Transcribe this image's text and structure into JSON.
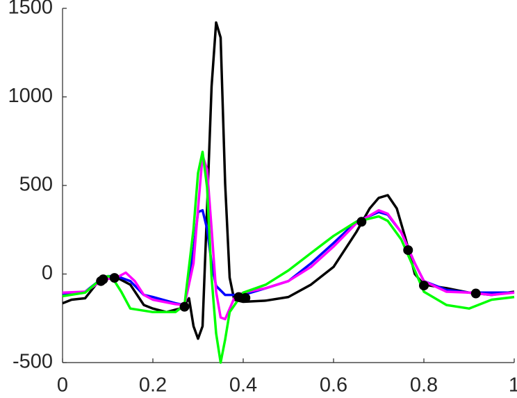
{
  "chart_data": {
    "type": "line",
    "xlim": [
      0,
      1
    ],
    "xticks": [
      0,
      0.2,
      0.4,
      0.6,
      0.8,
      1
    ],
    "ylim": [
      -500,
      1500
    ],
    "yticks": [
      -500,
      0,
      500,
      1000,
      1500
    ],
    "series": [
      {
        "color": "#000000",
        "x": [
          0,
          0.02,
          0.05,
          0.08,
          0.1,
          0.12,
          0.15,
          0.18,
          0.2,
          0.23,
          0.26,
          0.27,
          0.28,
          0.29,
          0.3,
          0.31,
          0.32,
          0.33,
          0.34,
          0.35,
          0.36,
          0.37,
          0.38,
          0.4,
          0.45,
          0.5,
          0.55,
          0.6,
          0.65,
          0.68,
          0.7,
          0.72,
          0.74,
          0.76,
          0.78,
          0.8,
          0.85,
          0.9,
          0.95,
          1
        ],
        "values": [
          -165,
          -145,
          -137,
          -40,
          -12,
          -20,
          -60,
          -175,
          -195,
          -215,
          -195,
          -175,
          -137,
          -295,
          -365,
          -295,
          370,
          1060,
          1420,
          1335,
          510,
          -20,
          -145,
          -157,
          -150,
          -130,
          -60,
          40,
          235,
          370,
          430,
          445,
          370,
          195,
          0,
          -60,
          -80,
          -105,
          -118,
          -100
        ]
      },
      {
        "color": "#0000ff",
        "x": [
          0,
          0.05,
          0.08,
          0.1,
          0.12,
          0.15,
          0.18,
          0.2,
          0.25,
          0.27,
          0.29,
          0.3,
          0.31,
          0.32,
          0.33,
          0.34,
          0.36,
          0.4,
          0.45,
          0.5,
          0.55,
          0.6,
          0.65,
          0.7,
          0.72,
          0.75,
          0.78,
          0.8,
          0.85,
          0.9,
          0.95,
          1
        ],
        "values": [
          -110,
          -100,
          -40,
          -12,
          -12,
          -40,
          -118,
          -130,
          -165,
          -175,
          137,
          350,
          360,
          255,
          60,
          -67,
          -118,
          -118,
          -80,
          -40,
          60,
          175,
          295,
          350,
          335,
          235,
          60,
          -40,
          -90,
          -105,
          -105,
          -105
        ]
      },
      {
        "color": "#ff00ff",
        "x": [
          0,
          0.05,
          0.08,
          0.1,
          0.12,
          0.14,
          0.16,
          0.18,
          0.2,
          0.25,
          0.27,
          0.29,
          0.3,
          0.31,
          0.32,
          0.33,
          0.34,
          0.35,
          0.36,
          0.38,
          0.4,
          0.45,
          0.5,
          0.55,
          0.6,
          0.65,
          0.7,
          0.72,
          0.75,
          0.78,
          0.8,
          0.85,
          0.9,
          0.95,
          1
        ],
        "values": [
          -105,
          -100,
          -50,
          -28,
          -20,
          8,
          -40,
          -118,
          -145,
          -170,
          -175,
          60,
          370,
          670,
          590,
          255,
          -100,
          -245,
          -255,
          -137,
          -105,
          -80,
          -40,
          40,
          155,
          285,
          360,
          340,
          235,
          60,
          -40,
          -100,
          -105,
          -118,
          -105
        ]
      },
      {
        "color": "#00ff00",
        "x": [
          0,
          0.05,
          0.08,
          0.1,
          0.11,
          0.13,
          0.15,
          0.2,
          0.25,
          0.27,
          0.29,
          0.3,
          0.31,
          0.32,
          0.33,
          0.34,
          0.35,
          0.36,
          0.37,
          0.4,
          0.45,
          0.5,
          0.55,
          0.6,
          0.65,
          0.7,
          0.72,
          0.75,
          0.78,
          0.8,
          0.85,
          0.9,
          0.95,
          1
        ],
        "values": [
          -125,
          -105,
          -40,
          -12,
          -20,
          -100,
          -195,
          -215,
          -215,
          -175,
          255,
          570,
          690,
          490,
          -20,
          -335,
          -500,
          -370,
          -215,
          -105,
          -60,
          20,
          118,
          215,
          295,
          325,
          300,
          195,
          20,
          -100,
          -175,
          -195,
          -145,
          -130
        ]
      },
      {
        "color": "#000000",
        "mode": "markers",
        "x": [
          0.085,
          0.09,
          0.115,
          0.27,
          0.39,
          0.405,
          0.662,
          0.765,
          0.8,
          0.915
        ],
        "values": [
          -40,
          -30,
          -22,
          -185,
          -130,
          -135,
          295,
          135,
          -65,
          -110
        ]
      }
    ]
  }
}
